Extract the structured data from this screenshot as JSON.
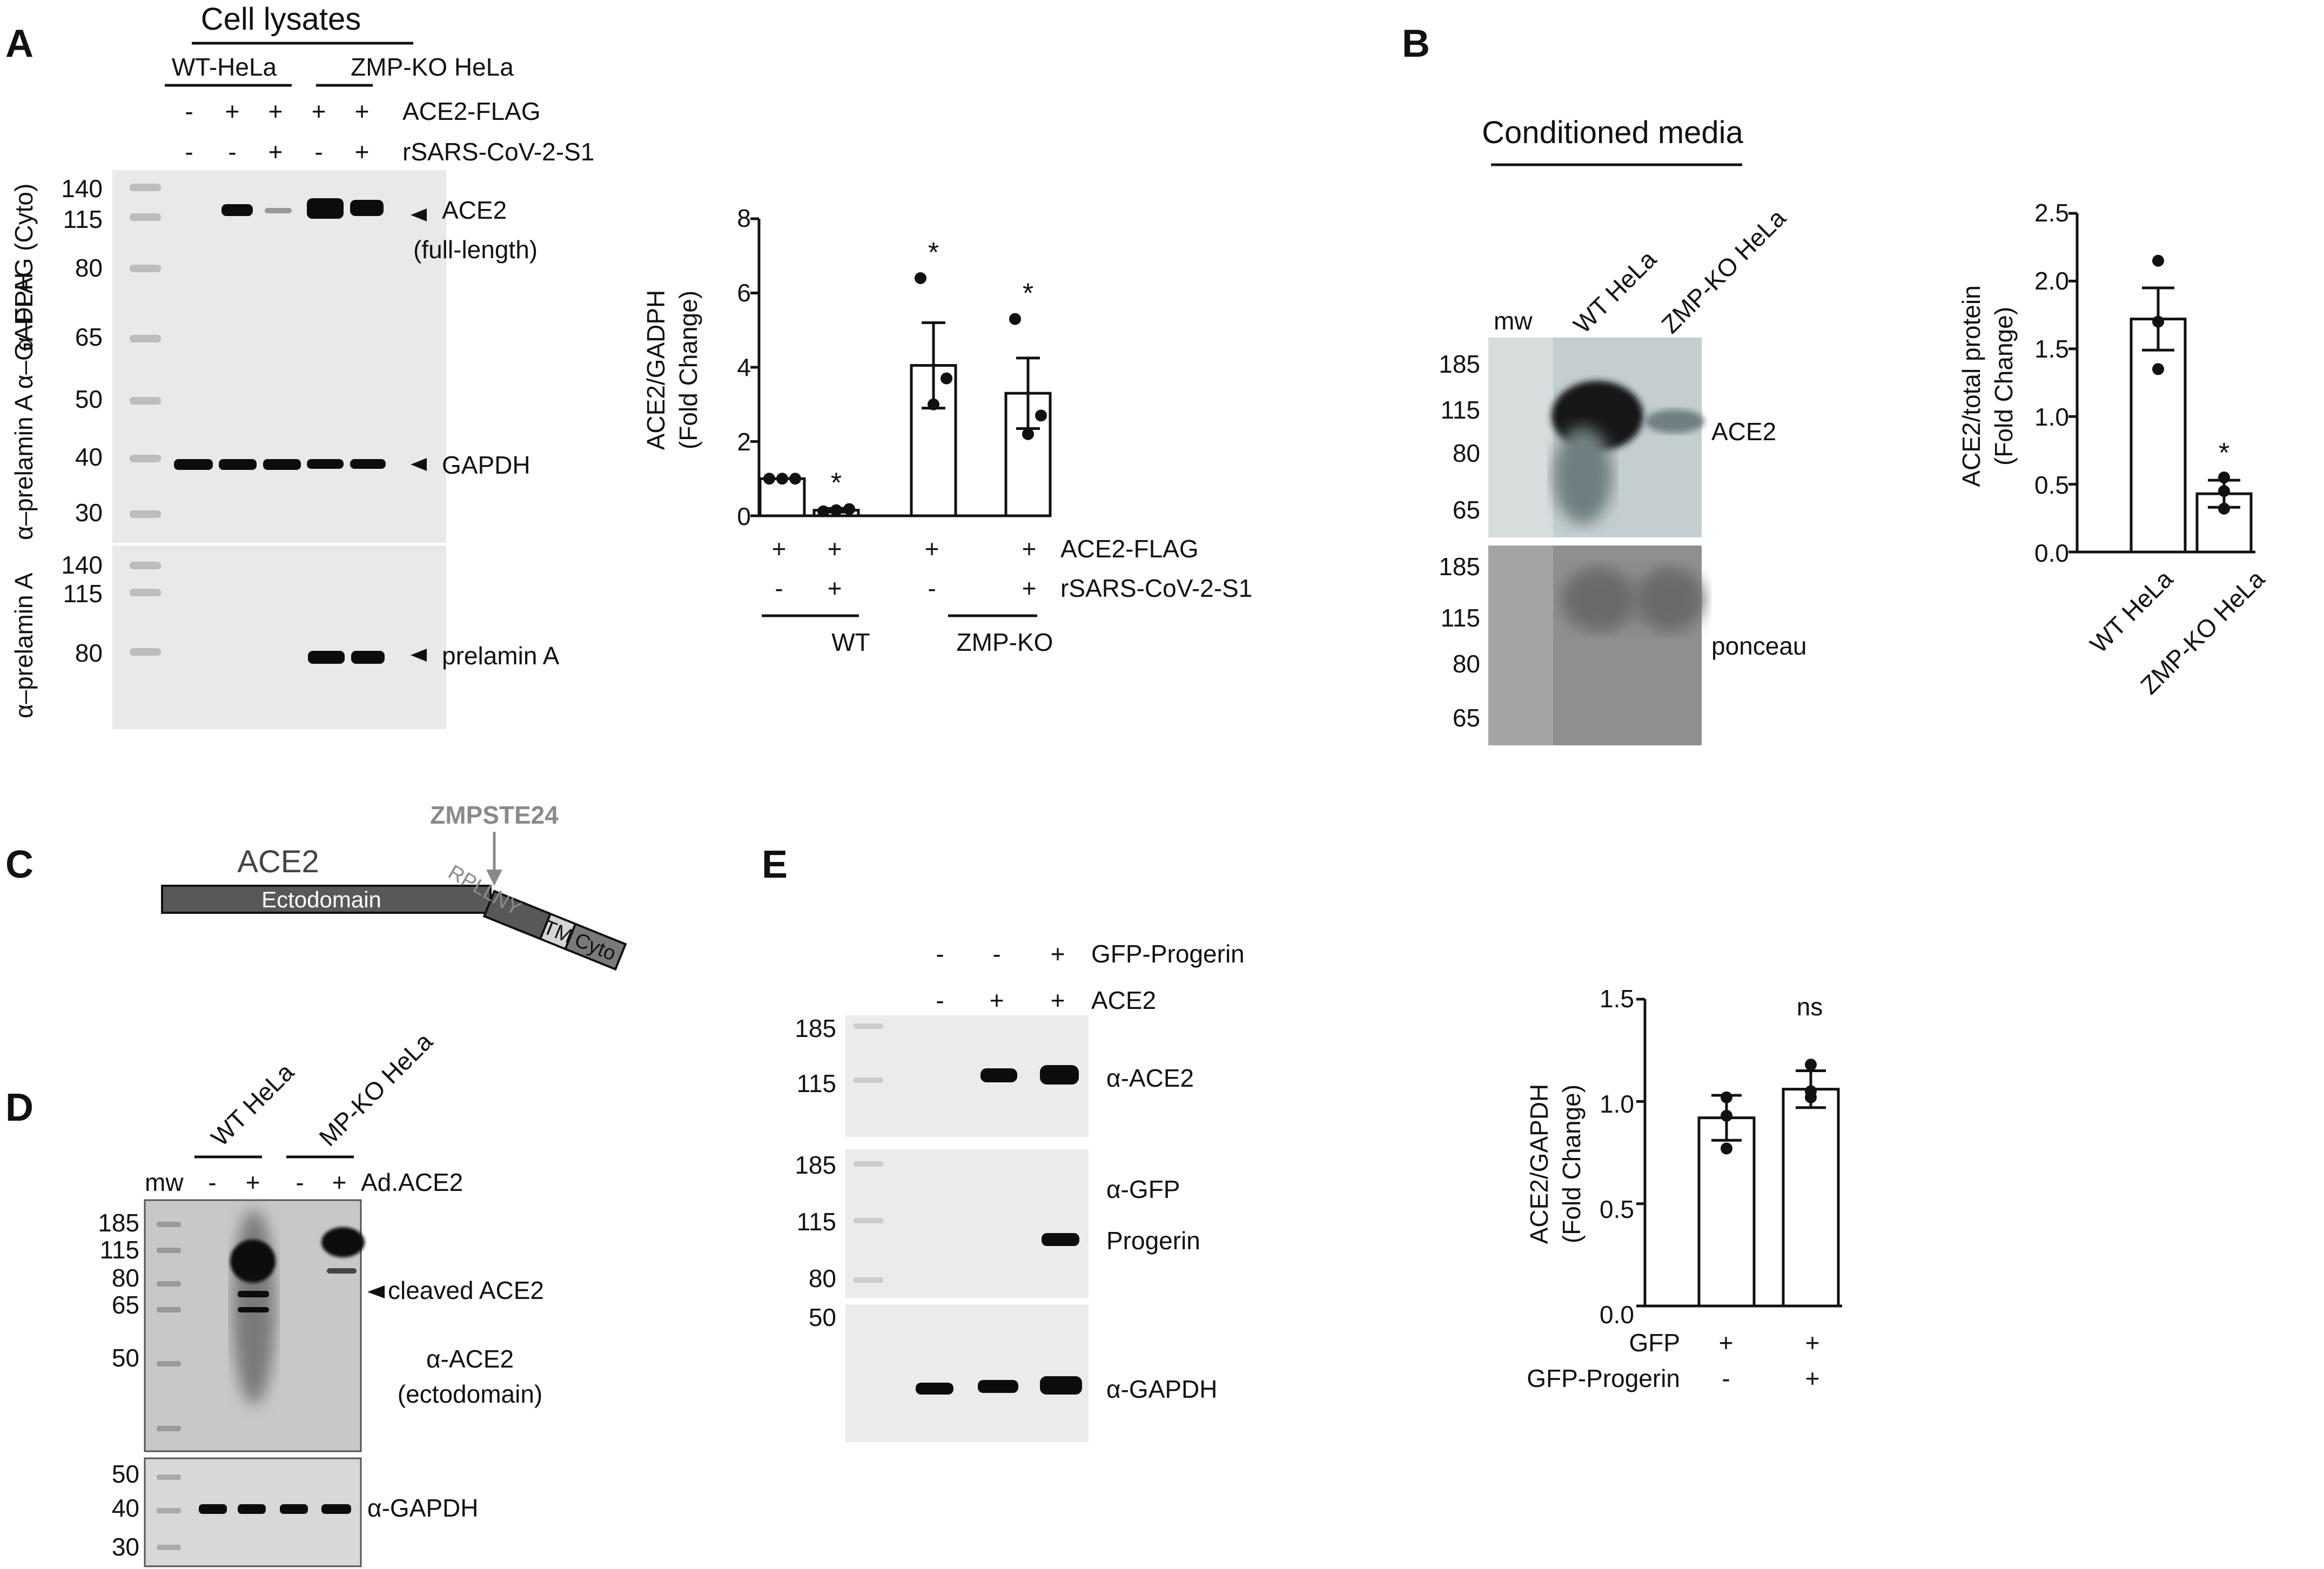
{
  "panels": {
    "A": {
      "label": "A",
      "header": "Cell lysates",
      "group_wt": "WT-HeLa",
      "group_ko": "ZMP-KO HeLa",
      "row1_signs": [
        "-",
        "+",
        "+",
        "+",
        "+"
      ],
      "row1_label": "ACE2-FLAG",
      "row2_signs": [
        "-",
        "-",
        "+",
        "-",
        "+"
      ],
      "row2_label": "rSARS-CoV-2-S1",
      "left_label_1": "α–FLAG (Cyto)",
      "left_label_2": "α–prelamin A α–GADPH",
      "mw_top": [
        "140",
        "115",
        "80",
        "65",
        "50",
        "40",
        "30"
      ],
      "mw_bottom": [
        "140",
        "115",
        "80"
      ],
      "band_ace2_1": "ACE2",
      "band_ace2_2": "(full-length)",
      "band_gapdh": "GAPDH",
      "band_prelamin": "prelamin A"
    },
    "A_chart": {
      "ylabel_1": "ACE2/GADPH",
      "ylabel_2": "(Fold Change)",
      "ticks": [
        "8",
        "6",
        "4",
        "2",
        "0"
      ],
      "row1_signs": [
        "+",
        "+",
        "+",
        "+"
      ],
      "row1_label": "ACE2-FLAG",
      "row2_signs": [
        "-",
        "+",
        "-",
        "+"
      ],
      "row2_label": "rSARS-CoV-2-S1",
      "group_wt": "WT",
      "group_ko": "ZMP-KO",
      "sig": [
        "",
        "*",
        "*",
        "*"
      ]
    },
    "B": {
      "label": "B",
      "header": "Conditioned media",
      "mw": "mw",
      "lane1": "WT HeLa",
      "lane2": "ZMP-KO HeLa",
      "mw_top": [
        "185",
        "115",
        "80",
        "65"
      ],
      "mw_bottom": [
        "185",
        "115",
        "80",
        "65"
      ],
      "band_ace2": "ACE2",
      "band_ponceau": "ponceau"
    },
    "B_chart": {
      "ylabel_1": "ACE2/total protein",
      "ylabel_2": "(Fold Change)",
      "ticks": [
        "2.5",
        "2.0",
        "1.5",
        "1.0",
        "0.5",
        "0.0"
      ],
      "categories": [
        "WT HeLa",
        "ZMP-KO HeLa"
      ],
      "sig": [
        "",
        "*"
      ]
    },
    "C": {
      "label": "C",
      "protein": "ACE2",
      "enzyme": "ZMPSTE24",
      "domain_ecto": "Ectodomain",
      "domain_tm": "TM",
      "domain_cyto": "Cyto",
      "sequence": "RPLLNY"
    },
    "D": {
      "label": "D",
      "lane1": "WT HeLa",
      "lane2": "MP-KO HeLa",
      "mw": "mw",
      "signs": [
        "-",
        "+",
        "-",
        "+"
      ],
      "treatment": "Ad.ACE2",
      "mw_top": [
        "185",
        "115",
        "80",
        "65",
        "50"
      ],
      "mw_bottom": [
        "50",
        "40",
        "30"
      ],
      "band_cleaved": "cleaved ACE2",
      "ab_1": "α-ACE2",
      "ab_2": "(ectodomain)",
      "ab_gapdh": "α-GAPDH"
    },
    "E": {
      "label": "E",
      "row1_signs": [
        "-",
        "-",
        "+"
      ],
      "row1_label": "GFP-Progerin",
      "row2_signs": [
        "-",
        "+",
        "+"
      ],
      "row2_label": "ACE2",
      "mw_1": [
        "185",
        "115"
      ],
      "mw_2": [
        "185",
        "115",
        "80"
      ],
      "mw_3": [
        "50"
      ],
      "ab_ace2": "α-ACE2",
      "ab_gfp": "α-GFP",
      "band_progerin": "Progerin",
      "ab_gapdh": "α-GAPDH"
    },
    "E_chart": {
      "ylabel_1": "ACE2/GAPDH",
      "ylabel_2": "(Fold Change)",
      "ticks": [
        "1.5",
        "1.0",
        "0.5",
        "0.0"
      ],
      "row1_label": "GFP",
      "row1_signs": [
        "+",
        "+"
      ],
      "row2_label": "GFP-Progerin",
      "row2_signs": [
        "-",
        "+"
      ],
      "sig": "ns"
    }
  },
  "chart_data": [
    {
      "type": "bar",
      "panel": "A",
      "categories": [
        "ACE2-FLAG + / rSARS-CoV-2-S1 - (WT)",
        "ACE2-FLAG + / rSARS-CoV-2-S1 + (WT)",
        "ACE2-FLAG + / rSARS-CoV-2-S1 - (ZMP-KO)",
        "ACE2-FLAG + / rSARS-CoV-2-S1 + (ZMP-KO)"
      ],
      "values": [
        1.0,
        0.15,
        4.05,
        3.3
      ],
      "errors": [
        0.0,
        0.05,
        1.15,
        0.95
      ],
      "points": [
        [
          1.0,
          1.0,
          1.0
        ],
        [
          0.12,
          0.15,
          0.18
        ],
        [
          6.4,
          3.0,
          3.7
        ],
        [
          5.3,
          2.2,
          2.7
        ]
      ],
      "ylabel": "ACE2/GADPH (Fold Change)",
      "ylim": [
        0,
        8
      ],
      "significance": [
        "",
        "*",
        "*",
        "*"
      ]
    },
    {
      "type": "bar",
      "panel": "B",
      "categories": [
        "WT HeLa",
        "ZMP-KO HeLa"
      ],
      "values": [
        1.72,
        0.43
      ],
      "errors": [
        0.23,
        0.1
      ],
      "points": [
        [
          2.15,
          1.7,
          1.35
        ],
        [
          0.55,
          0.45,
          0.32
        ]
      ],
      "ylabel": "ACE2/total protein (Fold Change)",
      "ylim": [
        0,
        2.5
      ],
      "significance": [
        "",
        "*"
      ]
    },
    {
      "type": "bar",
      "panel": "E",
      "categories": [
        "GFP + / GFP-Progerin -",
        "GFP + / GFP-Progerin +"
      ],
      "values": [
        0.92,
        1.06
      ],
      "errors": [
        0.11,
        0.09
      ],
      "points": [
        [
          1.02,
          0.93,
          0.77
        ],
        [
          1.18,
          1.05,
          1.02
        ]
      ],
      "ylabel": "ACE2/GAPDH (Fold Change)",
      "ylim": [
        0,
        1.5
      ],
      "significance": "ns"
    }
  ]
}
